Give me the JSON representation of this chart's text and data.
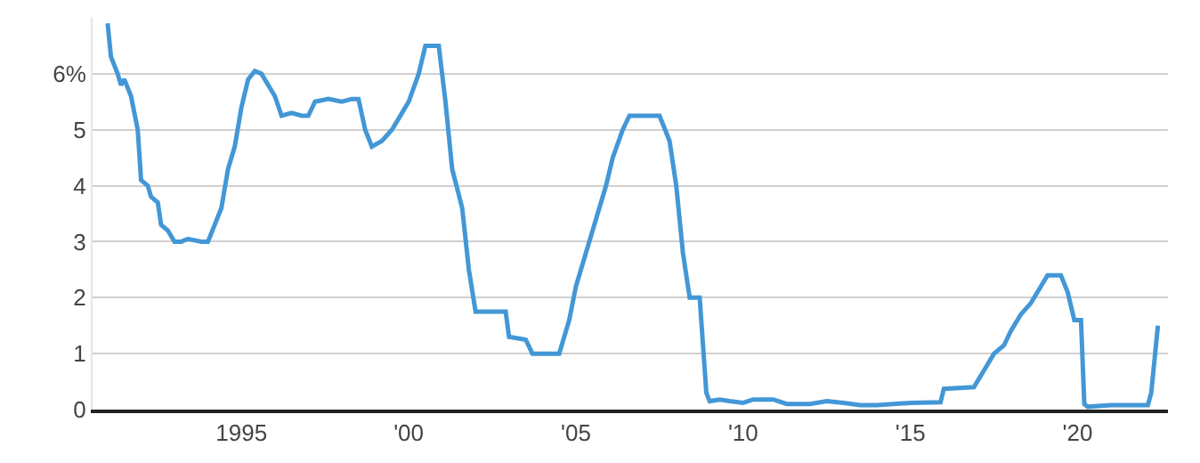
{
  "chart_data": {
    "type": "line",
    "x": [
      1991.0,
      1991.1,
      1991.3,
      1991.4,
      1991.5,
      1991.7,
      1991.9,
      1992.0,
      1992.2,
      1992.3,
      1992.5,
      1992.6,
      1992.8,
      1993.0,
      1993.2,
      1993.4,
      1993.8,
      1994.0,
      1994.2,
      1994.4,
      1994.6,
      1994.8,
      1995.0,
      1995.2,
      1995.4,
      1995.6,
      1995.8,
      1996.0,
      1996.2,
      1996.5,
      1996.8,
      1997.0,
      1997.2,
      1997.6,
      1998.0,
      1998.3,
      1998.5,
      1998.7,
      1998.9,
      1999.2,
      1999.5,
      1999.8,
      2000.0,
      2000.3,
      2000.5,
      2000.9,
      2001.1,
      2001.3,
      2001.6,
      2001.8,
      2002.0,
      2002.5,
      2002.9,
      2003.0,
      2003.5,
      2003.7,
      2004.5,
      2004.8,
      2005.0,
      2005.3,
      2005.6,
      2005.9,
      2006.1,
      2006.4,
      2006.6,
      2007.5,
      2007.8,
      2008.0,
      2008.2,
      2008.4,
      2008.7,
      2008.9,
      2009.0,
      2009.3,
      2009.6,
      2010.0,
      2010.3,
      2010.9,
      2011.3,
      2012.0,
      2012.5,
      2013.0,
      2013.5,
      2014.0,
      2015.0,
      2015.9,
      2016.0,
      2016.9,
      2017.2,
      2017.5,
      2017.8,
      2018.0,
      2018.3,
      2018.6,
      2018.9,
      2019.1,
      2019.5,
      2019.7,
      2019.9,
      2020.1,
      2020.2,
      2020.3,
      2021.0,
      2021.5,
      2022.1,
      2022.2,
      2022.4
    ],
    "series": [
      {
        "color": "#4397d6",
        "values": [
          6.9,
          6.3,
          6.0,
          5.8,
          5.9,
          5.6,
          5.0,
          4.1,
          4.0,
          3.8,
          3.7,
          3.3,
          3.2,
          3.0,
          3.0,
          3.05,
          3.0,
          3.0,
          3.3,
          3.6,
          4.3,
          4.7,
          5.4,
          5.9,
          6.05,
          6.0,
          5.8,
          5.6,
          5.25,
          5.3,
          5.25,
          5.25,
          5.5,
          5.55,
          5.5,
          5.55,
          5.55,
          5.0,
          4.7,
          4.8,
          5.0,
          5.3,
          5.5,
          6.0,
          6.5,
          6.5,
          5.5,
          4.3,
          3.6,
          2.5,
          1.75,
          1.75,
          1.75,
          1.3,
          1.25,
          1.0,
          1.0,
          1.6,
          2.2,
          2.8,
          3.4,
          4.0,
          4.5,
          5.0,
          5.25,
          5.25,
          4.8,
          4.0,
          2.8,
          2.0,
          2.0,
          0.3,
          0.15,
          0.18,
          0.15,
          0.12,
          0.18,
          0.18,
          0.1,
          0.1,
          0.15,
          0.12,
          0.08,
          0.08,
          0.12,
          0.13,
          0.37,
          0.4,
          0.7,
          1.0,
          1.15,
          1.4,
          1.7,
          1.9,
          2.2,
          2.4,
          2.4,
          2.1,
          1.6,
          1.6,
          0.1,
          0.05,
          0.08,
          0.08,
          0.08,
          0.3,
          1.5
        ]
      }
    ],
    "xlim": [
      1990.55,
      2022.7
    ],
    "xticks": [
      {
        "value": 1995,
        "label": "1995"
      },
      {
        "value": 2000,
        "label": "'00"
      },
      {
        "value": 2005,
        "label": "'05"
      },
      {
        "value": 2010,
        "label": "'10"
      },
      {
        "value": 2015,
        "label": "'15"
      },
      {
        "value": 2020,
        "label": "'20"
      }
    ],
    "ylim": [
      0,
      7
    ],
    "yticks": [
      0,
      1,
      2,
      3,
      4,
      5,
      {
        "value": 6,
        "label": "6%"
      }
    ],
    "grid": "y",
    "marker": "none",
    "line_style": "solid"
  }
}
